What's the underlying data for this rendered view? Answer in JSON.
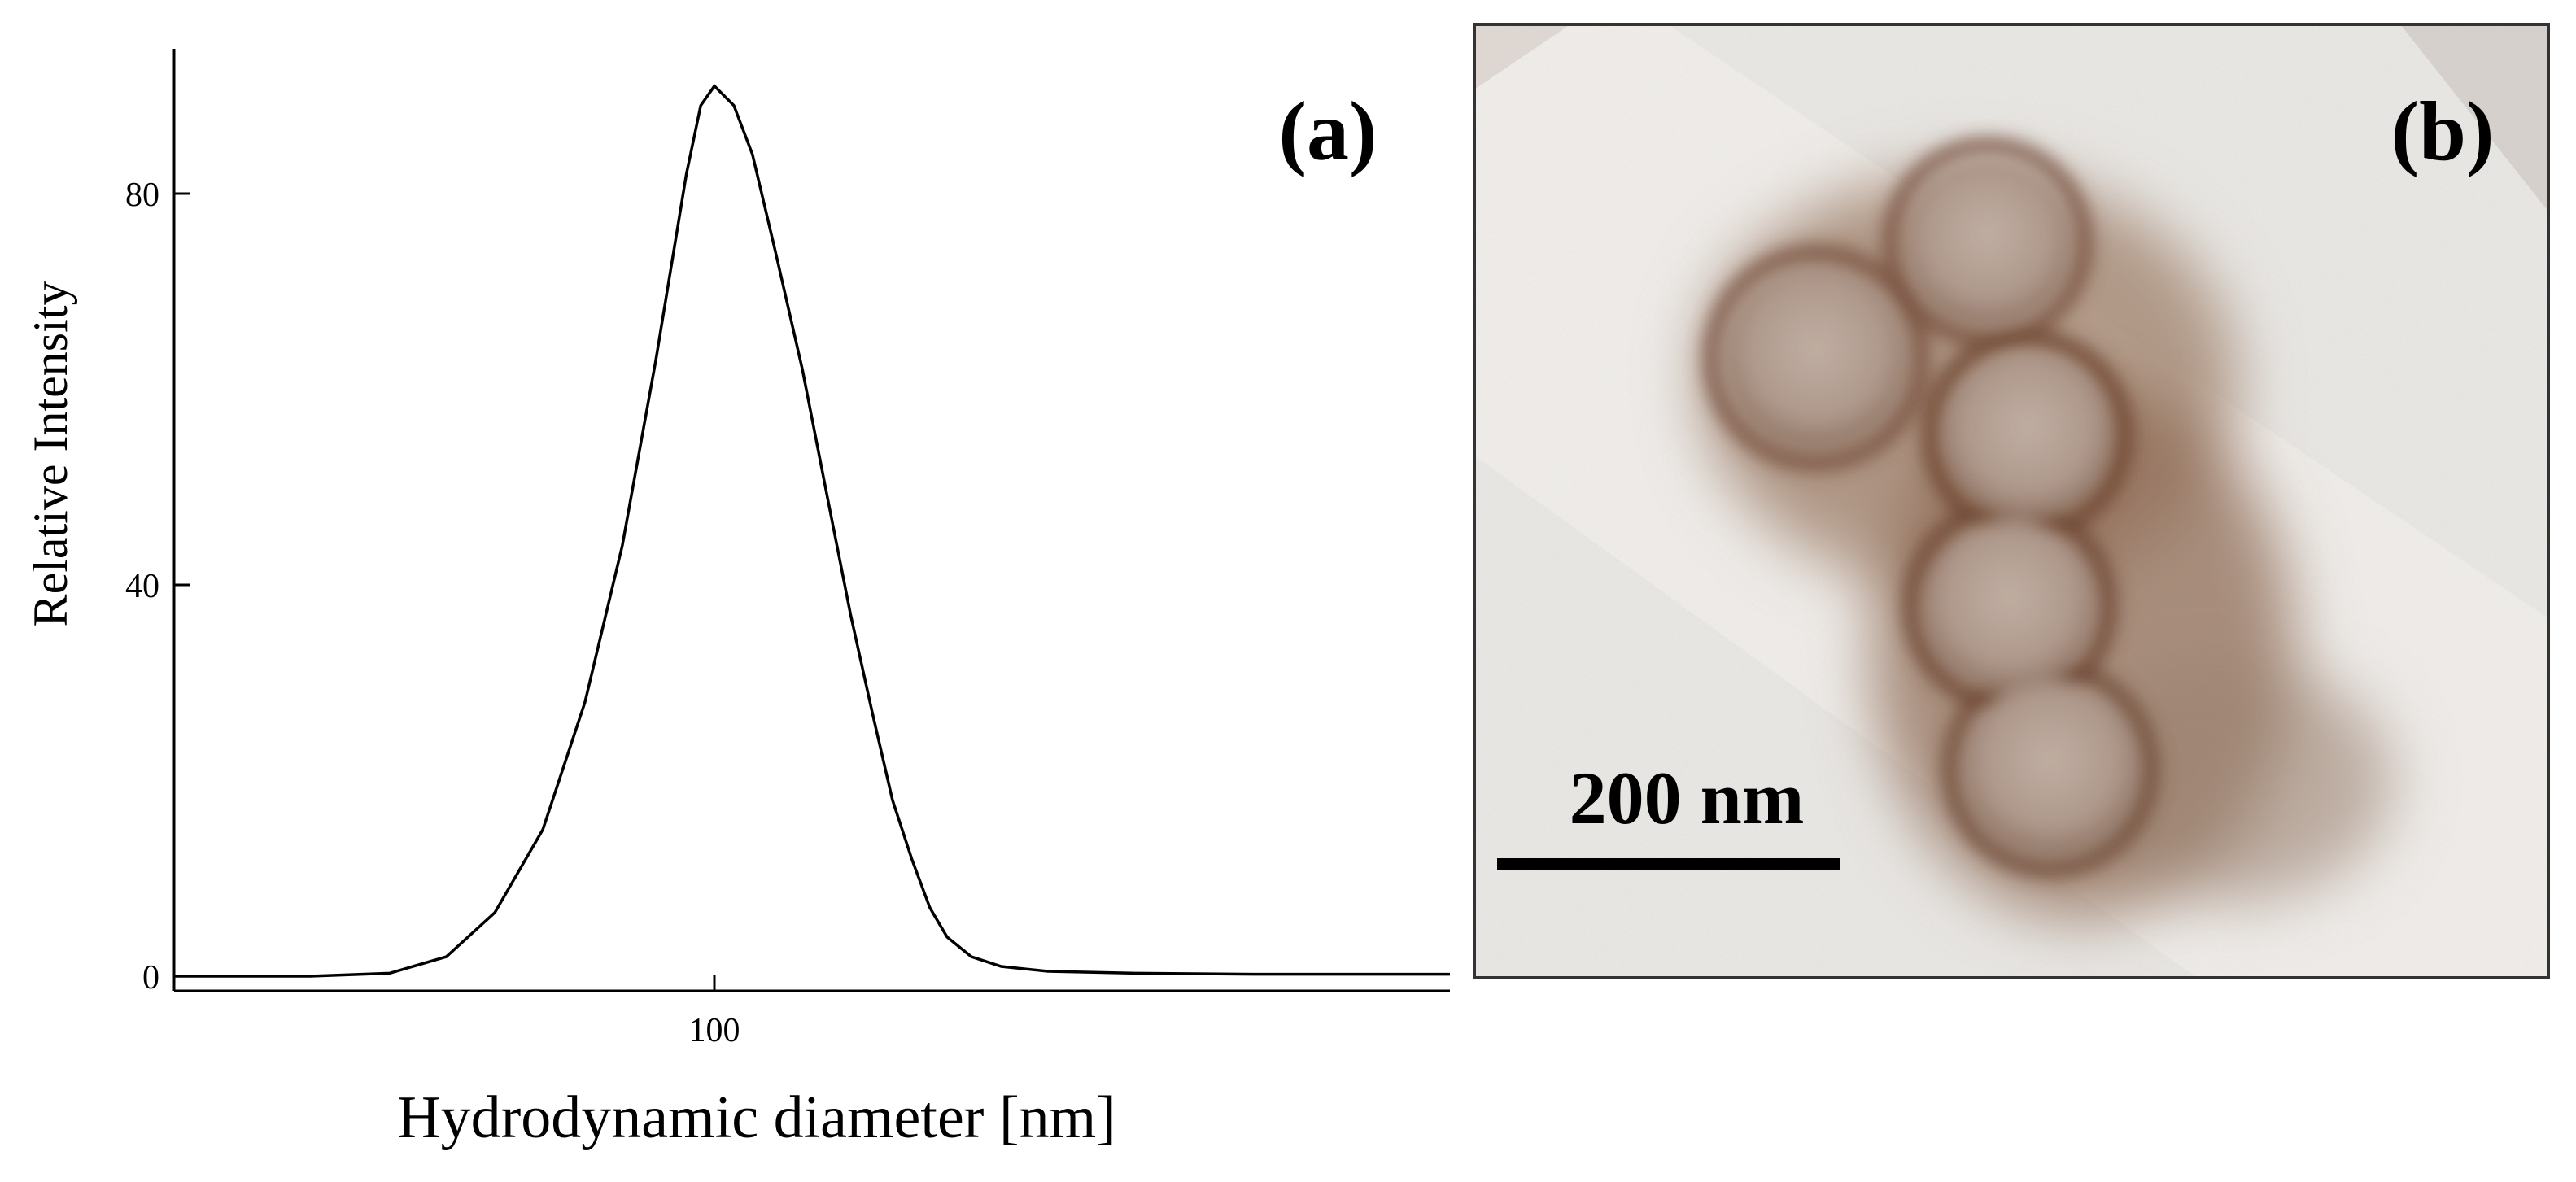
{
  "panel_a_label": "(a)",
  "panel_b_label": "(b)",
  "scale_bar": {
    "label": "200 nm",
    "length_nm": 200
  },
  "chart_data": {
    "type": "line",
    "title": "",
    "xlabel": "Hydrodynamic diameter [nm]",
    "ylabel": "Relative Intensity",
    "x_scale": "log",
    "xlim": [
      19.3,
      1200
    ],
    "ylim": [
      -2,
      95
    ],
    "xticks": [
      100
    ],
    "yticks": [
      0,
      40,
      80
    ],
    "grid": false,
    "legend": "none",
    "line_color": "#000000",
    "series": [
      {
        "x": [
          19.3,
          30,
          38,
          45,
          52,
          60,
          68,
          76,
          84,
          92,
          96,
          100,
          106,
          112,
          120,
          130,
          140,
          150,
          160,
          170,
          180,
          190,
          200,
          215,
          235,
          270,
          350,
          500,
          800,
          1200
        ],
        "y": [
          0,
          0,
          0.3,
          2,
          6.5,
          15,
          28,
          44,
          63,
          82,
          89,
          91,
          89,
          84,
          74,
          62,
          49,
          37,
          27,
          18,
          12,
          7,
          4,
          2,
          1,
          0.5,
          0.3,
          0.2,
          0.2,
          0.2
        ]
      }
    ]
  },
  "tem_image": {
    "background_color": "#ededeb",
    "stain_color": "#7a5038",
    "particle_color": "#b09a8c"
  }
}
